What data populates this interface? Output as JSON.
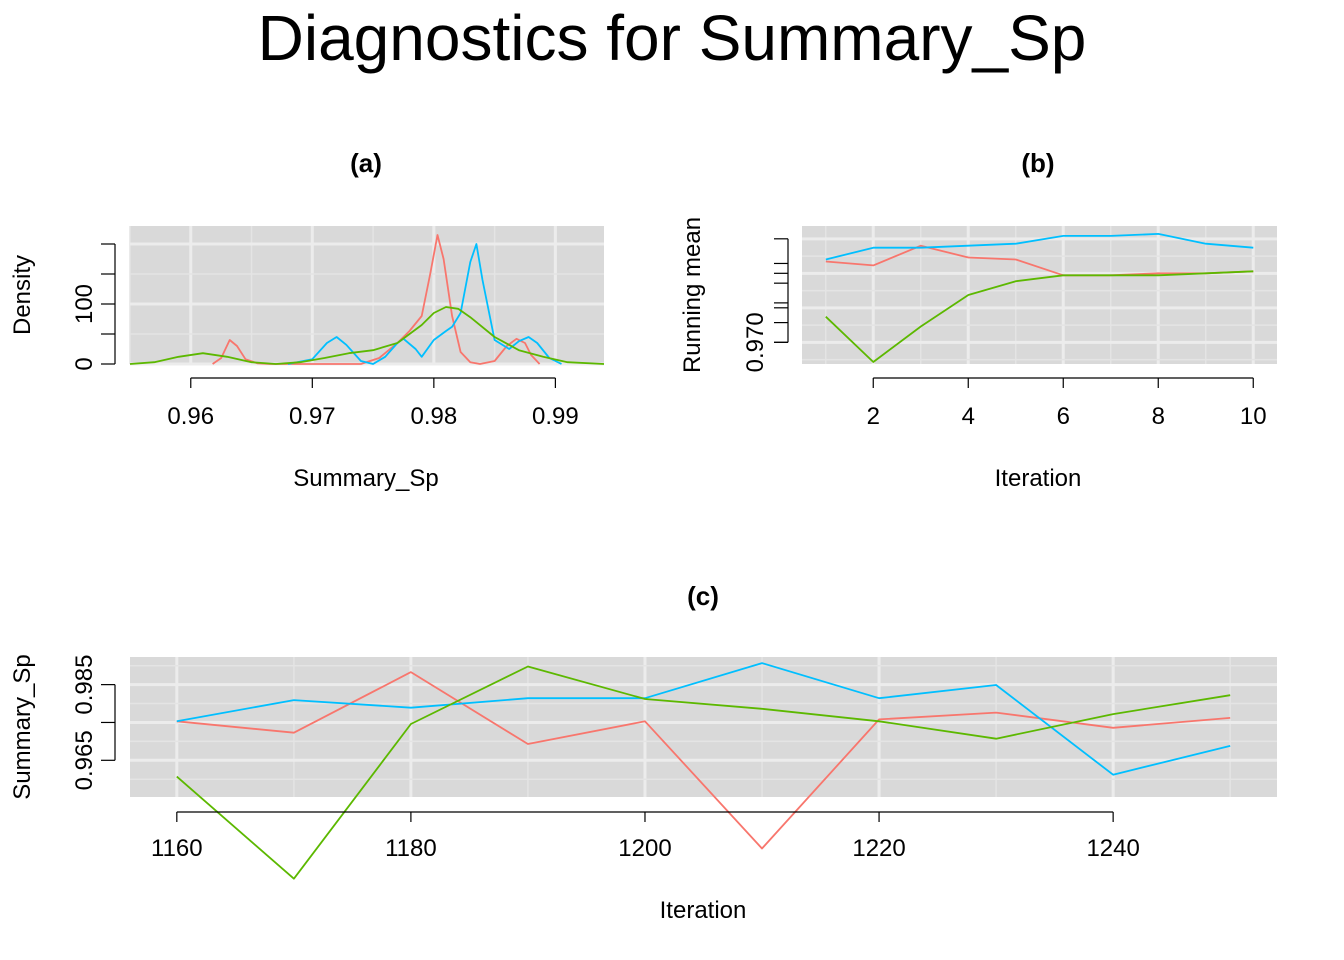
{
  "title": "Diagnostics for Summary_Sp",
  "colors": {
    "chain1": "#F8766D",
    "chain2": "#00BFFF",
    "chain3": "#5CB800"
  },
  "chart_data": [
    {
      "id": "a",
      "type": "line",
      "title": "(a)",
      "xlabel": "Summary_Sp",
      "ylabel": "Density",
      "xlim": [
        0.955,
        0.994
      ],
      "ylim": [
        0,
        230
      ],
      "xticks": [
        0.96,
        0.97,
        0.98,
        0.99
      ],
      "xtick_labels": [
        "0.96",
        "0.97",
        "0.98",
        "0.99"
      ],
      "yticks": [
        0,
        100
      ],
      "ytick_labels": [
        "0",
        "100"
      ],
      "series": [
        {
          "color_key": "chain1",
          "x": [
            0.9618,
            0.9625,
            0.9632,
            0.9638,
            0.9645,
            0.9655,
            0.9665,
            0.968,
            0.97,
            0.972,
            0.974,
            0.9755,
            0.977,
            0.978,
            0.979,
            0.9797,
            0.9803,
            0.9808,
            0.9815,
            0.9822,
            0.983,
            0.9838,
            0.985,
            0.986,
            0.9868,
            0.9875,
            0.988,
            0.9887
          ],
          "y": [
            0,
            10,
            40,
            30,
            8,
            1,
            0,
            0,
            0,
            0,
            0,
            10,
            35,
            55,
            80,
            150,
            215,
            175,
            80,
            20,
            3,
            0,
            5,
            30,
            42,
            35,
            15,
            0
          ]
        },
        {
          "color_key": "chain2",
          "x": [
            0.968,
            0.97,
            0.9712,
            0.972,
            0.9728,
            0.974,
            0.975,
            0.976,
            0.977,
            0.9775,
            0.9785,
            0.979,
            0.98,
            0.981,
            0.9815,
            0.9822,
            0.983,
            0.9835,
            0.984,
            0.985,
            0.9862,
            0.987,
            0.9878,
            0.9885,
            0.9895,
            0.9905
          ],
          "y": [
            0,
            8,
            35,
            45,
            32,
            5,
            0,
            12,
            35,
            42,
            25,
            12,
            40,
            55,
            62,
            85,
            170,
            200,
            140,
            40,
            25,
            38,
            45,
            35,
            10,
            0
          ]
        },
        {
          "color_key": "chain3",
          "x": [
            0.955,
            0.957,
            0.959,
            0.961,
            0.963,
            0.965,
            0.967,
            0.969,
            0.971,
            0.973,
            0.975,
            0.977,
            0.979,
            0.98,
            0.981,
            0.982,
            0.983,
            0.985,
            0.987,
            0.989,
            0.991,
            0.994
          ],
          "y": [
            0,
            3,
            12,
            18,
            12,
            3,
            0,
            3,
            10,
            18,
            23,
            35,
            65,
            85,
            95,
            92,
            78,
            45,
            23,
            12,
            3,
            0
          ]
        }
      ]
    },
    {
      "id": "b",
      "type": "line",
      "title": "(b)",
      "xlabel": "Iteration",
      "ylabel": "Running mean",
      "xlim": [
        0.5,
        10.5
      ],
      "ylim": [
        0.9689,
        0.9759
      ],
      "xticks": [
        2,
        4,
        6,
        8,
        10
      ],
      "xtick_labels": [
        "2",
        "4",
        "6",
        "8",
        "10"
      ],
      "yticks": [
        0.97
      ],
      "ytick_labels": [
        "0.970"
      ],
      "series": [
        {
          "color_key": "chain1",
          "x": [
            1,
            2,
            3,
            4,
            5,
            6,
            7,
            8,
            9,
            10
          ],
          "y": [
            0.9741,
            0.9739,
            0.9749,
            0.9743,
            0.9742,
            0.9734,
            0.9734,
            0.9735,
            0.9735,
            0.9736
          ]
        },
        {
          "color_key": "chain2",
          "x": [
            1,
            2,
            3,
            4,
            5,
            6,
            7,
            8,
            9,
            10
          ],
          "y": [
            0.9742,
            0.9748,
            0.9748,
            0.9749,
            0.975,
            0.9754,
            0.9754,
            0.9755,
            0.975,
            0.9748
          ]
        },
        {
          "color_key": "chain3",
          "x": [
            1,
            2,
            3,
            4,
            5,
            6,
            7,
            8,
            9,
            10
          ],
          "y": [
            0.9713,
            0.969,
            0.9708,
            0.9724,
            0.9731,
            0.9734,
            0.9734,
            0.9734,
            0.9735,
            0.9736
          ]
        }
      ]
    },
    {
      "id": "c",
      "type": "line",
      "title": "(c)",
      "xlabel": "Iteration",
      "ylabel": "Summary_Sp",
      "xlim": [
        1156,
        1254
      ],
      "ylim": [
        0.9553,
        0.9923
      ],
      "xticks": [
        1160,
        1180,
        1200,
        1220,
        1240
      ],
      "xtick_labels": [
        "1160",
        "1180",
        "1200",
        "1220",
        "1240"
      ],
      "yticks": [
        0.965,
        0.975,
        0.985
      ],
      "ytick_labels": [
        "0.965",
        "",
        "0.985"
      ],
      "series": [
        {
          "color_key": "chain1",
          "x": [
            1160,
            1170,
            1180,
            1190,
            1200,
            1210,
            1220,
            1230,
            1240,
            1250
          ],
          "y": [
            0.9753,
            0.9723,
            0.9883,
            0.9693,
            0.9753,
            0.9417,
            0.9758,
            0.9776,
            0.9736,
            0.9762
          ]
        },
        {
          "color_key": "chain2",
          "x": [
            1160,
            1170,
            1180,
            1190,
            1200,
            1210,
            1220,
            1230,
            1240,
            1250
          ],
          "y": [
            0.9753,
            0.9809,
            0.9789,
            0.9814,
            0.9814,
            0.9907,
            0.9814,
            0.9849,
            0.9612,
            0.9688
          ]
        },
        {
          "color_key": "chain3",
          "x": [
            1160,
            1170,
            1180,
            1190,
            1200,
            1210,
            1220,
            1230,
            1240,
            1250
          ],
          "y": [
            0.9607,
            0.9337,
            0.9746,
            0.9898,
            0.9812,
            0.9786,
            0.9753,
            0.9707,
            0.9772,
            0.9822
          ]
        }
      ]
    }
  ]
}
